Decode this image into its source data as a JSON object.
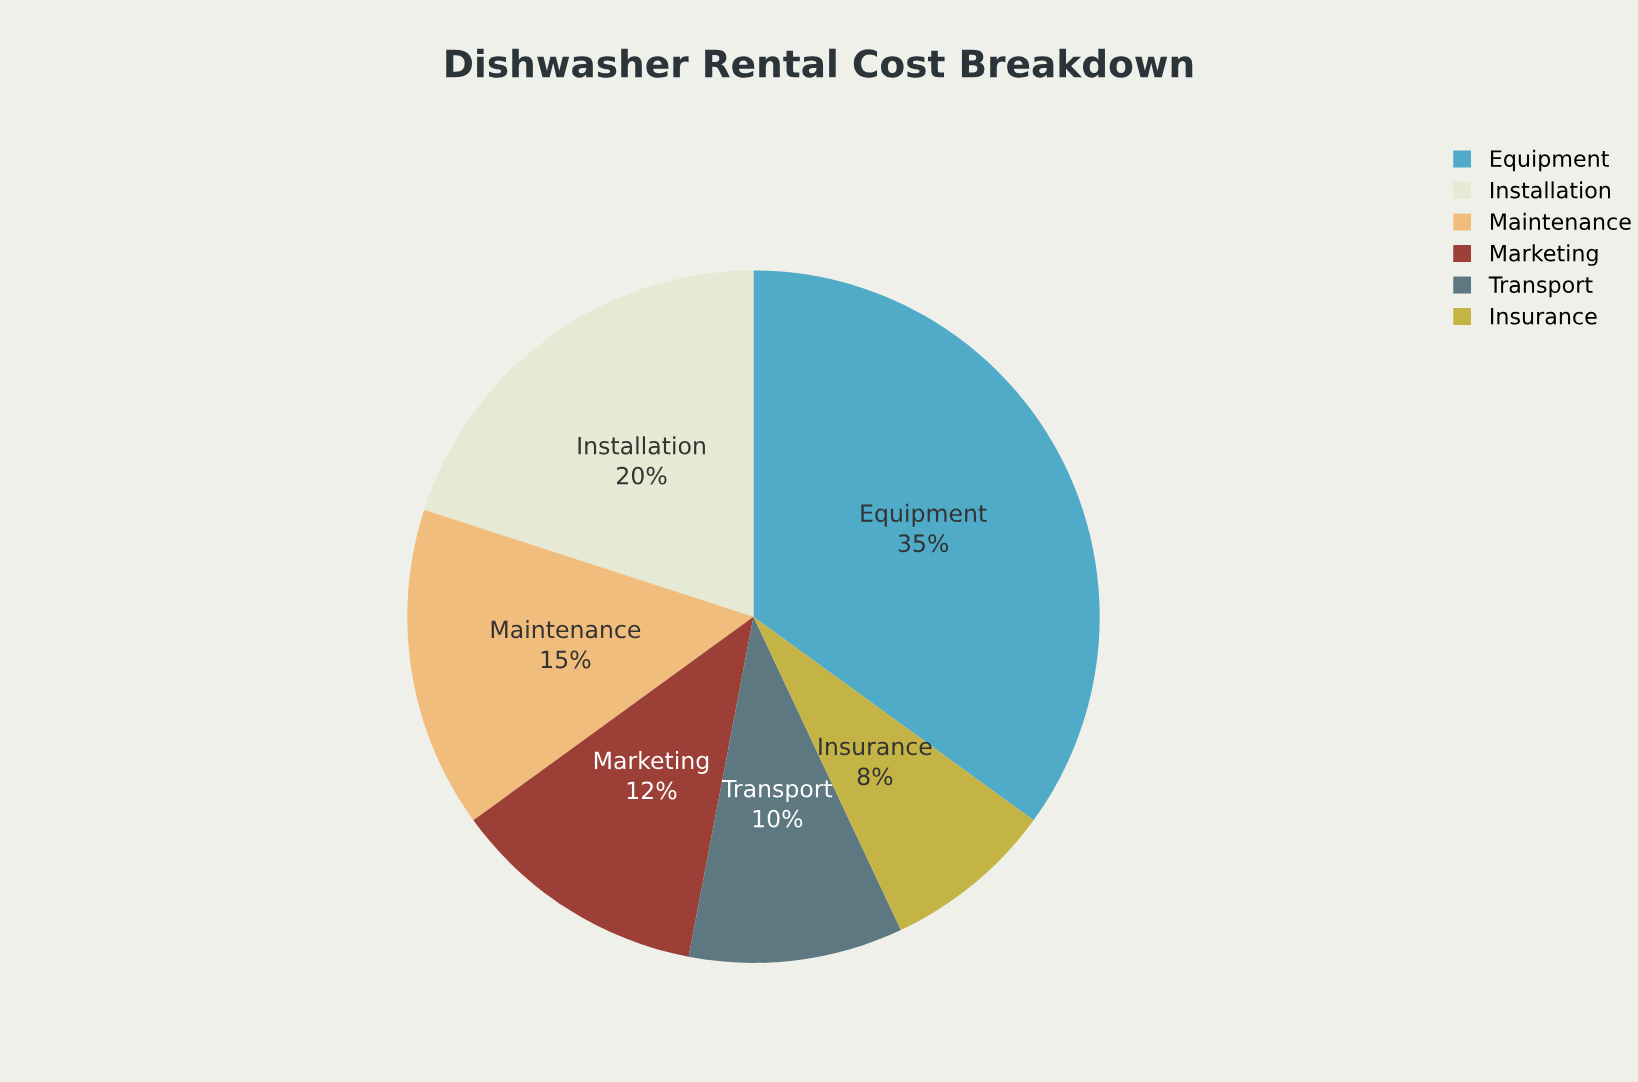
{
  "chart_data": {
    "type": "pie",
    "title": "Dishwasher Rental Cost Breakdown",
    "categories": [
      "Equipment",
      "Installation",
      "Maintenance",
      "Marketing",
      "Transport",
      "Insurance"
    ],
    "values": [
      35,
      20,
      15,
      12,
      10,
      8
    ],
    "colors": [
      "#4fabc8",
      "#e6e9d3",
      "#f1bd7d",
      "#9c3f36",
      "#5d7880",
      "#c4b445"
    ],
    "value_labels": [
      "35%",
      "20%",
      "15%",
      "12%",
      "10%",
      "8%"
    ],
    "legend": "top right"
  }
}
